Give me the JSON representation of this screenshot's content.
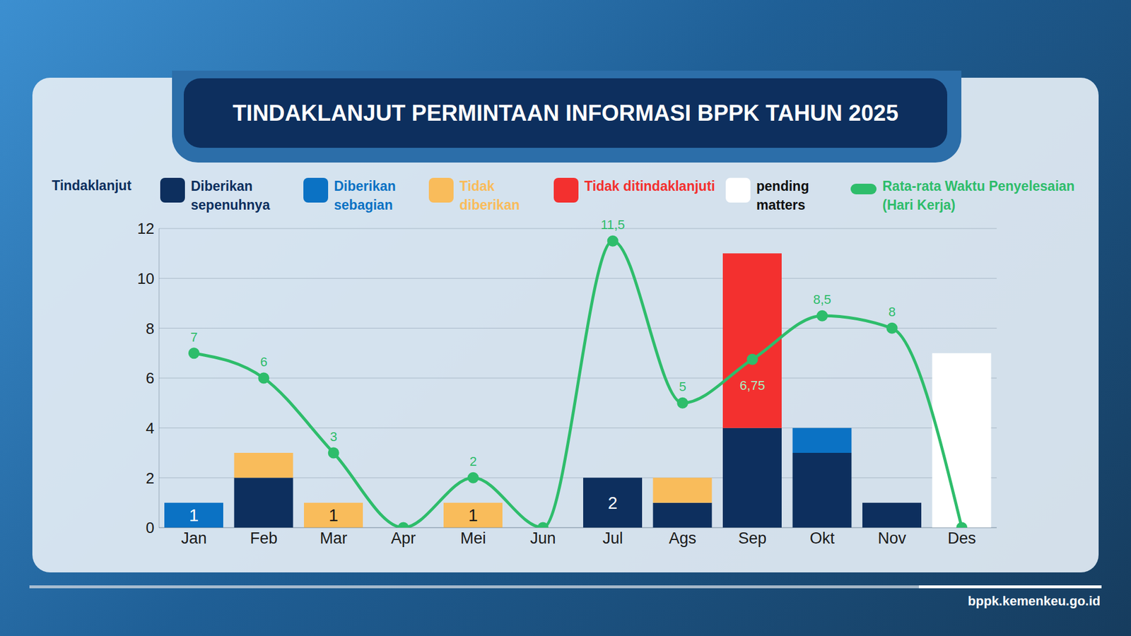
{
  "chart_data": {
    "type": "bar",
    "title": "TINDAKLANJUT PERMINTAAN INFORMASI BPPK TAHUN 2025",
    "source": "bppk.kemenkeu.go.id",
    "y_label": "Tindaklanjut",
    "stacked": true,
    "data_labels": true,
    "grid": true,
    "legend": "top",
    "categories": [
      "Jan",
      "Feb",
      "Mar",
      "Apr",
      "Mei",
      "Jun",
      "Jul",
      "Ags",
      "Sep",
      "Okt",
      "Nov",
      "Des"
    ],
    "series": [
      {
        "name": "Diberikan sepenuhnya",
        "type": "bar",
        "color": "#0d2f5e",
        "values": [
          null,
          2,
          null,
          null,
          null,
          null,
          2,
          1,
          4,
          3,
          1,
          null
        ]
      },
      {
        "name": "Diberikan sebagian",
        "type": "bar",
        "color": "#0b72c4",
        "values": [
          1,
          null,
          null,
          null,
          null,
          null,
          null,
          null,
          null,
          1,
          null,
          null
        ]
      },
      {
        "name": "Tidak diberikan",
        "type": "bar",
        "color": "#f9bc5b",
        "values": [
          null,
          1,
          1,
          null,
          1,
          null,
          null,
          1,
          null,
          null,
          null,
          null
        ]
      },
      {
        "name": "Tidak ditindaklanjuti",
        "type": "bar",
        "color": "#f3302f",
        "values": [
          null,
          null,
          null,
          null,
          null,
          null,
          null,
          null,
          7,
          null,
          null,
          null
        ]
      },
      {
        "name": "pending matters",
        "type": "bar",
        "color": "#ffffff",
        "values": [
          null,
          null,
          null,
          null,
          null,
          null,
          null,
          null,
          null,
          null,
          null,
          7
        ]
      },
      {
        "name": "Rata-rata Waktu Penyelesaian (Hari Kerja)",
        "type": "line",
        "color": "#2ebd6b",
        "marker": "circle",
        "values": [
          7,
          6,
          3,
          0,
          2,
          0,
          11.5,
          5,
          6.75,
          8.5,
          8,
          0
        ],
        "value_labels": [
          "7",
          "6",
          "3",
          null,
          "2",
          null,
          "11,5",
          "5",
          "6,75",
          "8,5",
          "8",
          null
        ]
      }
    ],
    "ylim": [
      0,
      12
    ],
    "yticks": [
      0,
      2,
      4,
      6,
      8,
      10,
      12
    ]
  }
}
